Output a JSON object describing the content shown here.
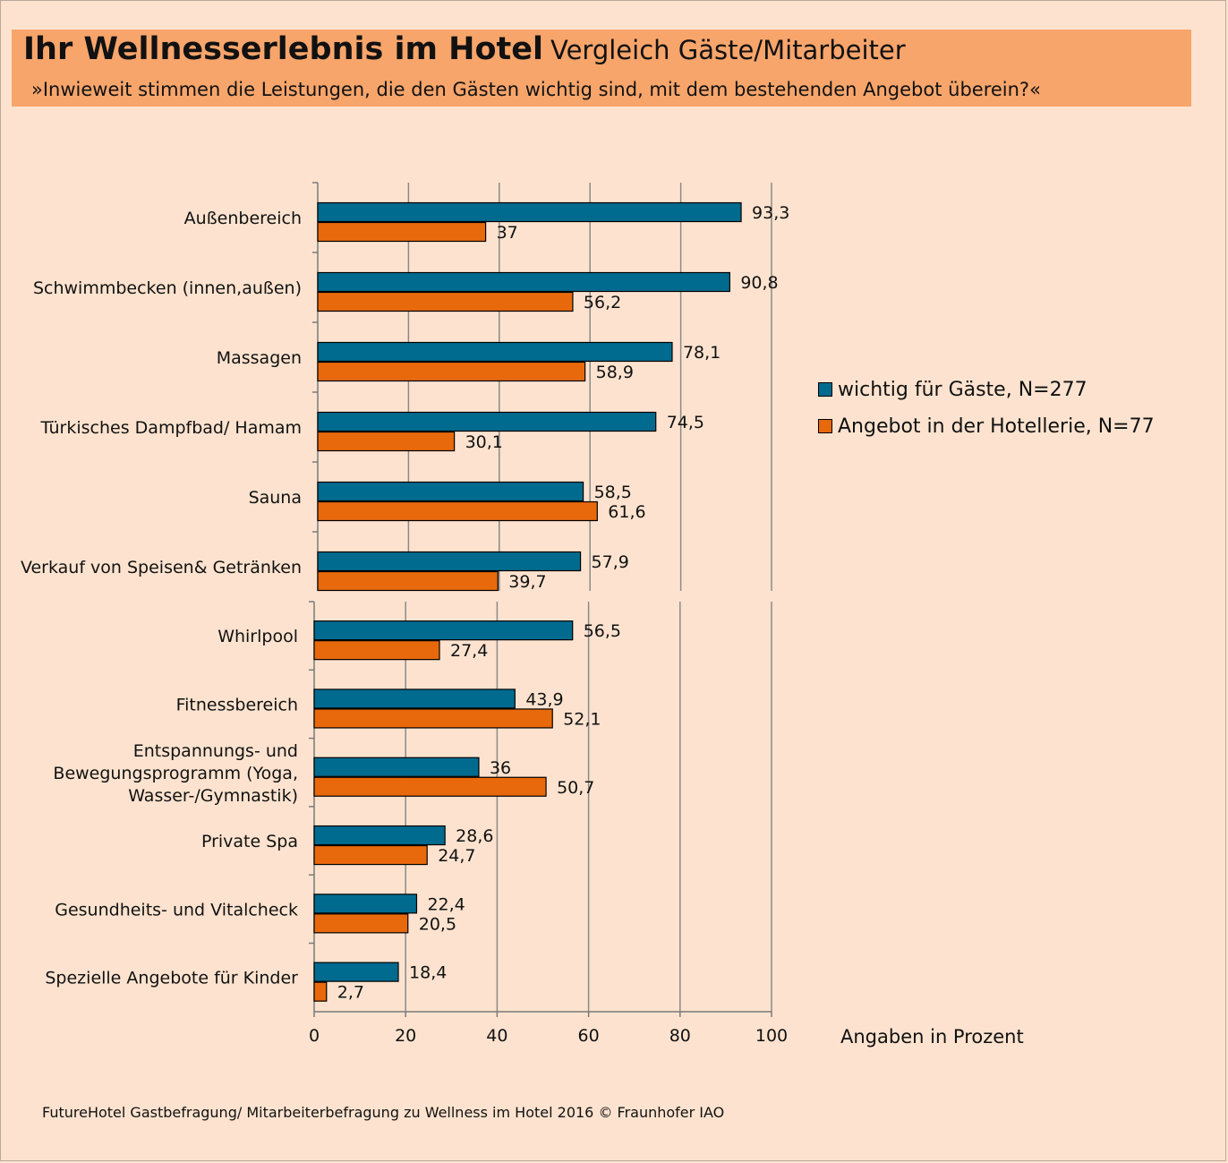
{
  "header": {
    "title": "Ihr Wellnesserlebnis im Hotel",
    "title_suffix": "Vergleich Gäste/Mitarbeiter",
    "subtitle": "»Inwieweit stimmen die Leistungen, die den Gästen wichtig sind, mit dem bestehenden Angebot überein?«"
  },
  "unit_label": "Angaben in Prozent",
  "footer": "FutureHotel Gastbefragung/ Mitarbeiterbefragung zu Wellness im Hotel 2016  © Fraunhofer IAO",
  "colors": {
    "background": "#fde3cf",
    "header": "#f7a56b",
    "series1": "#006b8f",
    "series2": "#e8690c"
  },
  "chart_data": [
    {
      "type": "bar",
      "orientation": "horizontal",
      "categories": [
        "Außenbereich",
        "Schwimmbecken (innen,außen)",
        "Massagen",
        "Türkisches Dampfbad/ Hamam",
        "Sauna",
        "Verkauf von Speisen& Getränken"
      ],
      "series": [
        {
          "name": "wichtig für Gäste, N=277",
          "values": [
            93.3,
            90.8,
            78.1,
            74.5,
            58.5,
            57.9
          ],
          "labels": [
            "93,3",
            "90,8",
            "78,1",
            "74,5",
            "58,5",
            "57,9"
          ]
        },
        {
          "name": "Angebot in der Hotellerie, N=77",
          "values": [
            37,
            56.2,
            58.9,
            30.1,
            61.6,
            39.7
          ],
          "labels": [
            "37",
            "56,2",
            "58,9",
            "30,1",
            "61,6",
            "39,7"
          ]
        }
      ],
      "xlim": [
        0,
        100
      ],
      "grid": true
    },
    {
      "type": "bar",
      "orientation": "horizontal",
      "categories": [
        "Whirlpool",
        "Fitnessbereich",
        "Entspannungs- und Bewegungsprogramm (Yoga, Wasser-/Gymnastik)",
        "Private Spa",
        "Gesundheits- und Vitalcheck",
        "Spezielle Angebote für Kinder"
      ],
      "series": [
        {
          "name": "wichtig für Gäste, N=277",
          "values": [
            56.5,
            43.9,
            36,
            28.6,
            22.4,
            18.4
          ],
          "labels": [
            "56,5",
            "43,9",
            "36",
            "28,6",
            "22,4",
            "18,4"
          ]
        },
        {
          "name": "Angebot in der Hotellerie, N=77",
          "values": [
            27.4,
            52.1,
            50.7,
            24.7,
            20.5,
            2.7
          ],
          "labels": [
            "27,4",
            "52,1",
            "50,7",
            "24,7",
            "20,5",
            "2,7"
          ]
        }
      ],
      "xlim": [
        0,
        100
      ],
      "xticks": [
        "0",
        "20",
        "40",
        "60",
        "80",
        "100"
      ],
      "grid": true
    }
  ],
  "legend": {
    "placement": "right",
    "items": [
      {
        "label": "wichtig für Gäste, N=277",
        "color": "#006b8f"
      },
      {
        "label": "Angebot in der Hotellerie, N=77",
        "color": "#e8690c"
      }
    ]
  }
}
